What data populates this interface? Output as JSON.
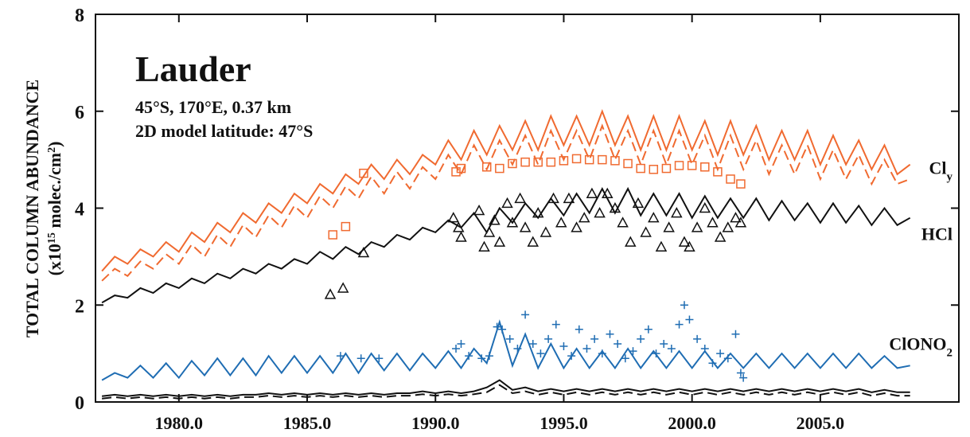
{
  "chart_data": {
    "type": "line",
    "title": "Lauder",
    "subtitle": [
      "45°S, 170°E, 0.37 km",
      "2D model latitude: 47°S"
    ],
    "y_label": "TOTAL COLUMN ABUNDANCE",
    "y_label_2": [
      {
        "text": "(x10",
        "sup": false
      },
      {
        "text": "15",
        "sup": true
      },
      {
        "text": " molec./cm",
        "sup": false
      },
      {
        "text": "2",
        "sup": true
      },
      {
        "text": ")",
        "sup": false
      }
    ],
    "xlim": [
      1976.75,
      2010.4
    ],
    "ylim": [
      0,
      8
    ],
    "xticks": [
      {
        "value": 1980,
        "label": "1980.0"
      },
      {
        "value": 1985,
        "label": "1985.0"
      },
      {
        "value": 1990,
        "label": "1990.0"
      },
      {
        "value": 1995,
        "label": "1995.0"
      },
      {
        "value": 2000,
        "label": "2000.0"
      },
      {
        "value": 2005,
        "label": "2005.0"
      }
    ],
    "yticks": [
      0,
      2,
      4,
      6,
      8
    ],
    "x": [
      1977,
      1977.5,
      1978,
      1978.5,
      1979,
      1979.5,
      1980,
      1980.5,
      1981,
      1981.5,
      1982,
      1982.5,
      1983,
      1983.5,
      1984,
      1984.5,
      1985,
      1985.5,
      1986,
      1986.5,
      1987,
      1987.5,
      1988,
      1988.5,
      1989,
      1989.5,
      1990,
      1990.5,
      1991,
      1991.5,
      1992,
      1992.5,
      1993,
      1993.5,
      1994,
      1994.5,
      1995,
      1995.5,
      1996,
      1996.5,
      1997,
      1997.5,
      1998,
      1998.5,
      1999,
      1999.5,
      2000,
      2000.5,
      2001,
      2001.5,
      2002,
      2002.5,
      2003,
      2003.5,
      2004,
      2004.5,
      2005,
      2005.5,
      2006,
      2006.5,
      2007,
      2007.5,
      2008,
      2008.5
    ],
    "series": [
      {
        "color": "#f06a30",
        "style": "solid",
        "label": {
          "main": "Cl",
          "sub": "y"
        },
        "values": [
          2.7,
          3.0,
          2.85,
          3.15,
          3.0,
          3.3,
          3.1,
          3.5,
          3.3,
          3.7,
          3.5,
          3.9,
          3.7,
          4.1,
          3.9,
          4.3,
          4.1,
          4.5,
          4.3,
          4.7,
          4.5,
          4.9,
          4.6,
          5.0,
          4.7,
          5.1,
          4.9,
          5.4,
          5.0,
          5.6,
          5.1,
          5.7,
          5.2,
          5.8,
          5.2,
          5.9,
          5.3,
          5.9,
          5.3,
          6.0,
          5.3,
          5.9,
          5.2,
          5.9,
          5.2,
          5.9,
          5.2,
          5.8,
          5.1,
          5.8,
          5.1,
          5.7,
          5.0,
          5.6,
          5.0,
          5.6,
          4.9,
          5.5,
          4.9,
          5.4,
          4.8,
          5.3,
          4.7,
          4.9
        ]
      },
      {
        "color": "#f06a30",
        "style": "dashed",
        "values": [
          2.5,
          2.75,
          2.6,
          2.9,
          2.75,
          3.05,
          2.85,
          3.25,
          3.0,
          3.45,
          3.2,
          3.65,
          3.4,
          3.85,
          3.6,
          4.05,
          3.8,
          4.25,
          4.0,
          4.45,
          4.2,
          4.65,
          4.3,
          4.75,
          4.4,
          4.85,
          4.6,
          5.1,
          4.7,
          5.3,
          4.8,
          5.4,
          4.9,
          5.5,
          4.9,
          5.6,
          5.0,
          5.6,
          5.0,
          5.7,
          5.0,
          5.6,
          4.9,
          5.6,
          4.9,
          5.6,
          4.9,
          5.5,
          4.8,
          5.5,
          4.8,
          5.4,
          4.7,
          5.3,
          4.7,
          5.3,
          4.6,
          5.2,
          4.6,
          5.1,
          4.5,
          5.0,
          4.5,
          4.6
        ]
      },
      {
        "color": "#111111",
        "style": "solid",
        "label": {
          "main": "HCl"
        },
        "values": [
          2.05,
          2.2,
          2.15,
          2.35,
          2.25,
          2.45,
          2.35,
          2.55,
          2.45,
          2.65,
          2.55,
          2.75,
          2.65,
          2.85,
          2.75,
          2.95,
          2.85,
          3.1,
          2.95,
          3.2,
          3.05,
          3.3,
          3.2,
          3.45,
          3.35,
          3.6,
          3.5,
          3.75,
          3.6,
          3.9,
          3.5,
          4.0,
          3.7,
          4.1,
          3.8,
          4.2,
          3.85,
          4.3,
          3.9,
          4.4,
          3.9,
          4.4,
          3.85,
          4.3,
          3.85,
          4.3,
          3.8,
          4.25,
          3.8,
          4.2,
          3.8,
          4.2,
          3.75,
          4.15,
          3.75,
          4.1,
          3.7,
          4.1,
          3.7,
          4.05,
          3.65,
          4.0,
          3.65,
          3.8
        ]
      },
      {
        "color": "#1f6db3",
        "style": "solid",
        "label": {
          "main": "ClONO",
          "sub": "2"
        },
        "values": [
          0.45,
          0.6,
          0.5,
          0.75,
          0.5,
          0.8,
          0.5,
          0.85,
          0.55,
          0.9,
          0.55,
          0.9,
          0.55,
          0.95,
          0.6,
          0.95,
          0.6,
          0.95,
          0.6,
          1.0,
          0.6,
          1.0,
          0.65,
          1.0,
          0.65,
          1.0,
          0.7,
          1.05,
          0.7,
          1.1,
          0.8,
          1.65,
          0.75,
          1.4,
          0.7,
          1.2,
          0.7,
          1.1,
          0.7,
          1.05,
          0.7,
          1.1,
          0.7,
          1.05,
          0.7,
          1.05,
          0.7,
          1.05,
          0.7,
          1.0,
          0.7,
          1.0,
          0.7,
          1.0,
          0.7,
          1.0,
          0.7,
          1.0,
          0.7,
          1.0,
          0.7,
          0.95,
          0.7,
          0.75
        ]
      },
      {
        "color": "#111111",
        "style": "solid",
        "values": [
          0.12,
          0.15,
          0.12,
          0.15,
          0.12,
          0.15,
          0.12,
          0.15,
          0.12,
          0.15,
          0.12,
          0.15,
          0.15,
          0.18,
          0.15,
          0.18,
          0.15,
          0.18,
          0.15,
          0.18,
          0.15,
          0.18,
          0.15,
          0.18,
          0.18,
          0.22,
          0.18,
          0.22,
          0.18,
          0.22,
          0.3,
          0.45,
          0.25,
          0.3,
          0.22,
          0.27,
          0.22,
          0.27,
          0.22,
          0.27,
          0.22,
          0.27,
          0.22,
          0.27,
          0.22,
          0.27,
          0.22,
          0.27,
          0.22,
          0.27,
          0.22,
          0.27,
          0.22,
          0.27,
          0.22,
          0.27,
          0.22,
          0.27,
          0.22,
          0.27,
          0.2,
          0.25,
          0.2,
          0.2
        ]
      },
      {
        "color": "#111111",
        "style": "dashed",
        "values": [
          0.07,
          0.1,
          0.07,
          0.1,
          0.07,
          0.1,
          0.07,
          0.1,
          0.07,
          0.1,
          0.07,
          0.1,
          0.1,
          0.13,
          0.1,
          0.13,
          0.1,
          0.13,
          0.1,
          0.13,
          0.1,
          0.13,
          0.1,
          0.13,
          0.13,
          0.16,
          0.13,
          0.16,
          0.13,
          0.16,
          0.2,
          0.35,
          0.18,
          0.22,
          0.15,
          0.2,
          0.15,
          0.2,
          0.15,
          0.2,
          0.15,
          0.2,
          0.15,
          0.2,
          0.15,
          0.2,
          0.15,
          0.2,
          0.15,
          0.2,
          0.15,
          0.2,
          0.15,
          0.2,
          0.15,
          0.2,
          0.15,
          0.2,
          0.15,
          0.2,
          0.13,
          0.18,
          0.13,
          0.13
        ]
      }
    ],
    "observations": [
      {
        "color": "#f06a30",
        "marker": "square",
        "x": [
          1986.0,
          1986.5,
          1987.2,
          1990.8,
          1991.0,
          1992.0,
          1992.5,
          1993.0,
          1993.5,
          1994.0,
          1994.5,
          1995.0,
          1995.5,
          1996.0,
          1996.5,
          1997.0,
          1997.5,
          1998.0,
          1998.5,
          1999.0,
          1999.5,
          2000.0,
          2000.5,
          2001.0,
          2001.5,
          2001.9
        ],
        "values": [
          3.45,
          3.62,
          4.72,
          4.75,
          4.82,
          4.85,
          4.82,
          4.92,
          4.95,
          4.95,
          4.95,
          4.98,
          5.02,
          5.0,
          5.0,
          4.98,
          4.92,
          4.82,
          4.8,
          4.82,
          4.88,
          4.88,
          4.85,
          4.75,
          4.6,
          4.5
        ]
      },
      {
        "color": "#111111",
        "marker": "triangle",
        "x": [
          1985.9,
          1986.4,
          1987.2,
          1990.7,
          1990.9,
          1991.0,
          1991.7,
          1991.9,
          1992.1,
          1992.3,
          1992.5,
          1992.8,
          1993.0,
          1993.3,
          1993.5,
          1993.8,
          1994.0,
          1994.3,
          1994.6,
          1994.9,
          1995.2,
          1995.5,
          1995.8,
          1996.1,
          1996.4,
          1996.7,
          1997.0,
          1997.3,
          1997.6,
          1997.9,
          1998.2,
          1998.5,
          1998.8,
          1999.1,
          1999.4,
          1999.7,
          1999.9,
          2000.2,
          2000.5,
          2000.8,
          2001.1,
          2001.4,
          2001.7,
          2001.9
        ],
        "values": [
          2.22,
          2.35,
          3.08,
          3.8,
          3.6,
          3.4,
          3.95,
          3.2,
          3.5,
          3.75,
          3.3,
          4.1,
          3.7,
          4.2,
          3.6,
          3.3,
          3.9,
          3.5,
          4.2,
          3.7,
          4.2,
          3.6,
          3.8,
          4.3,
          3.9,
          4.3,
          4.0,
          3.7,
          3.3,
          4.1,
          3.5,
          3.8,
          3.2,
          3.6,
          3.9,
          3.3,
          3.2,
          3.6,
          4.0,
          3.7,
          3.4,
          3.6,
          3.8,
          3.7
        ]
      },
      {
        "color": "#1f6db3",
        "marker": "plus",
        "x": [
          1986.3,
          1987.1,
          1987.8,
          1990.8,
          1991.0,
          1991.3,
          1991.8,
          1992.1,
          1992.4,
          1992.6,
          1992.9,
          1993.2,
          1993.5,
          1993.8,
          1994.1,
          1994.4,
          1994.7,
          1995.0,
          1995.3,
          1995.6,
          1995.9,
          1996.2,
          1996.5,
          1996.8,
          1997.1,
          1997.4,
          1997.7,
          1998.0,
          1998.3,
          1998.6,
          1998.9,
          1999.2,
          1999.5,
          1999.7,
          1999.9,
          2000.2,
          2000.5,
          2000.8,
          2001.1,
          2001.4,
          2001.7,
          2001.9,
          2002.0
        ],
        "values": [
          0.95,
          0.9,
          0.9,
          1.1,
          1.2,
          0.95,
          0.9,
          0.95,
          1.55,
          1.5,
          1.3,
          1.1,
          1.8,
          1.2,
          1.0,
          1.3,
          1.6,
          1.15,
          0.95,
          1.5,
          1.1,
          1.3,
          1.0,
          1.4,
          1.2,
          0.9,
          1.05,
          1.3,
          1.5,
          1.0,
          1.2,
          1.1,
          1.6,
          2.0,
          1.7,
          1.3,
          1.1,
          0.8,
          1.0,
          0.9,
          1.4,
          0.6,
          0.5
        ]
      }
    ]
  }
}
